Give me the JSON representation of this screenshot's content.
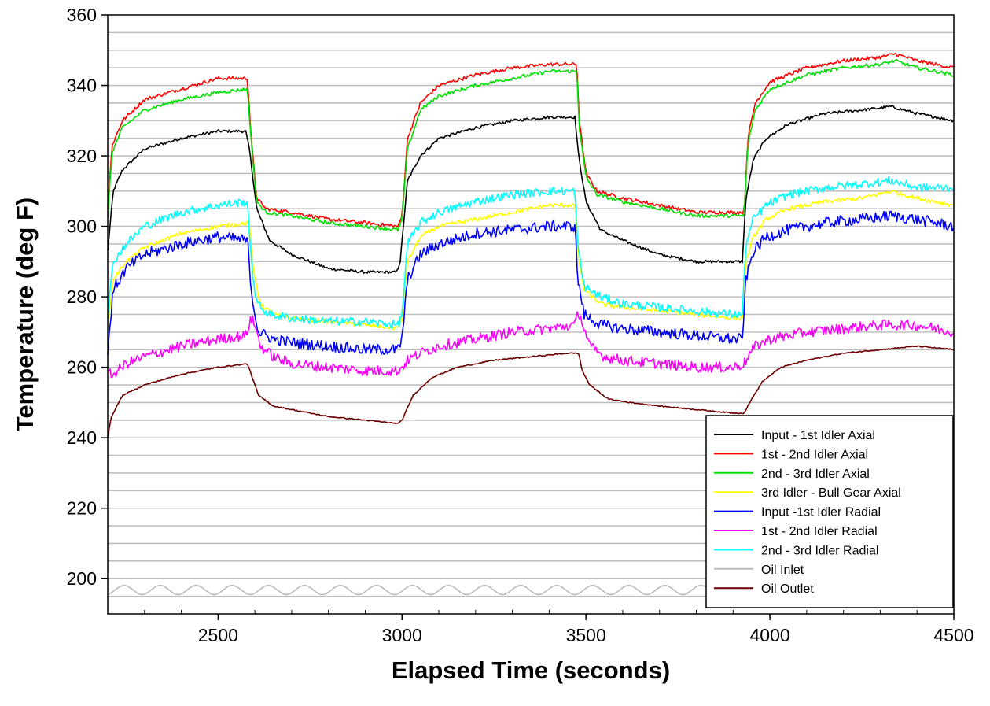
{
  "chart_data": {
    "type": "line",
    "xlabel": "Elapsed Time (seconds)",
    "ylabel": "Temperature (deg F)",
    "xlim": [
      2200,
      4500
    ],
    "ylim": [
      190,
      360
    ],
    "xticks": [
      2500,
      3000,
      3500,
      4000,
      4500
    ],
    "yticks": [
      200,
      220,
      240,
      260,
      280,
      300,
      320,
      340,
      360
    ],
    "grid": "horizontal",
    "legend_position": "bottom-right",
    "series": [
      {
        "name": "Input - 1st Idler Axial",
        "color": "#000000",
        "noise": 0.4,
        "x": [
          2200,
          2215,
          2240,
          2300,
          2400,
          2500,
          2575,
          2585,
          2605,
          2640,
          2700,
          2800,
          2900,
          2985,
          2995,
          3015,
          3050,
          3100,
          3200,
          3300,
          3400,
          3470,
          3480,
          3500,
          3540,
          3600,
          3700,
          3800,
          3900,
          3925,
          3935,
          3955,
          3990,
          4050,
          4150,
          4250,
          4330,
          4400,
          4500
        ],
        "y": [
          293,
          310,
          316,
          322,
          325,
          327,
          327,
          322,
          305,
          296,
          292,
          288,
          287,
          287,
          290,
          313,
          320,
          325,
          328,
          330,
          331,
          331,
          320,
          307,
          299,
          296,
          292,
          290,
          290,
          290,
          308,
          319,
          325,
          329,
          332,
          333,
          334,
          332,
          330
        ]
      },
      {
        "name": "1st - 2nd Idler Axial",
        "color": "#ff0000",
        "noise": 0.5,
        "x": [
          2200,
          2212,
          2240,
          2300,
          2400,
          2500,
          2580,
          2590,
          2605,
          2630,
          2700,
          2800,
          2900,
          2990,
          3000,
          3015,
          3050,
          3100,
          3200,
          3300,
          3400,
          3475,
          3482,
          3500,
          3530,
          3600,
          3700,
          3800,
          3900,
          3930,
          3940,
          3960,
          4000,
          4100,
          4200,
          4300,
          4340,
          4400,
          4500
        ],
        "y": [
          305,
          323,
          330,
          336,
          339,
          342,
          342,
          325,
          308,
          305,
          304,
          302,
          301,
          300,
          303,
          325,
          335,
          340,
          343,
          345,
          346,
          346,
          330,
          315,
          310,
          308,
          306,
          304,
          304,
          304,
          325,
          335,
          341,
          345,
          347,
          348,
          349,
          347,
          345
        ]
      },
      {
        "name": "2nd - 3rd Idler Axial",
        "color": "#00e000",
        "noise": 0.5,
        "x": [
          2200,
          2212,
          2240,
          2300,
          2400,
          2500,
          2580,
          2590,
          2605,
          2630,
          2700,
          2800,
          2900,
          2990,
          3000,
          3015,
          3050,
          3100,
          3200,
          3300,
          3400,
          3475,
          3482,
          3500,
          3530,
          3600,
          3700,
          3800,
          3900,
          3930,
          3940,
          3960,
          4000,
          4100,
          4200,
          4300,
          4340,
          4400,
          4500
        ],
        "y": [
          303,
          321,
          328,
          333,
          336,
          338,
          339,
          324,
          307,
          304,
          303,
          301,
          300,
          299,
          302,
          322,
          333,
          337,
          340,
          342,
          344,
          344,
          328,
          314,
          309,
          307,
          305,
          303,
          303,
          303,
          323,
          333,
          339,
          343,
          345,
          346,
          347,
          345,
          343
        ]
      },
      {
        "name": "3rd Idler - Bull Gear Axial",
        "color": "#ffff00",
        "noise": 0.6,
        "x": [
          2200,
          2215,
          2250,
          2300,
          2400,
          2500,
          2585,
          2595,
          2615,
          2650,
          2700,
          2800,
          2900,
          2990,
          3000,
          3015,
          3050,
          3100,
          3200,
          3300,
          3400,
          3470,
          3478,
          3495,
          3540,
          3600,
          3700,
          3800,
          3900,
          3925,
          3935,
          3955,
          3990,
          4050,
          4150,
          4250,
          4330,
          4400,
          4500
        ],
        "y": [
          272,
          285,
          290,
          294,
          298,
          300,
          301,
          288,
          278,
          275,
          274,
          273,
          272,
          271,
          274,
          290,
          297,
          300,
          302,
          304,
          306,
          306,
          292,
          282,
          278,
          277,
          276,
          275,
          274,
          274,
          290,
          297,
          302,
          305,
          307,
          308,
          310,
          308,
          306
        ]
      },
      {
        "name": "Input -1st Idler Radial",
        "color": "#0000ff",
        "noise": 1.6,
        "x": [
          2200,
          2215,
          2250,
          2300,
          2400,
          2500,
          2580,
          2592,
          2610,
          2650,
          2700,
          2800,
          2900,
          2990,
          3000,
          3015,
          3050,
          3100,
          3200,
          3300,
          3400,
          3470,
          3478,
          3495,
          3540,
          3600,
          3700,
          3800,
          3900,
          3925,
          3935,
          3955,
          3990,
          4050,
          4150,
          4250,
          4330,
          4400,
          4500
        ],
        "y": [
          265,
          282,
          288,
          292,
          295,
          297,
          296,
          280,
          270,
          268,
          267,
          266,
          265,
          265,
          268,
          285,
          292,
          295,
          298,
          299,
          300,
          300,
          285,
          275,
          272,
          271,
          270,
          269,
          268,
          268,
          285,
          293,
          297,
          299,
          301,
          302,
          303,
          302,
          300
        ]
      },
      {
        "name": "1st - 2nd Idler Radial",
        "color": "#ff00ff",
        "noise": 1.5,
        "x": [
          2200,
          2215,
          2250,
          2300,
          2400,
          2500,
          2575,
          2590,
          2600,
          2615,
          2650,
          2700,
          2800,
          2900,
          2990,
          3000,
          3015,
          3050,
          3100,
          3200,
          3300,
          3400,
          3470,
          3480,
          3495,
          3510,
          3550,
          3600,
          3700,
          3800,
          3900,
          3930,
          3940,
          3960,
          4000,
          4100,
          4200,
          4300,
          4400,
          4500
        ],
        "y": [
          258,
          258,
          261,
          263,
          266,
          268,
          269,
          274,
          272,
          266,
          263,
          261,
          260,
          259,
          259,
          260,
          262,
          264,
          266,
          268,
          270,
          271,
          272,
          276,
          271,
          266,
          263,
          262,
          261,
          260,
          260,
          261,
          263,
          266,
          268,
          270,
          271,
          272,
          272,
          270
        ]
      },
      {
        "name": "2nd - 3rd Idler Radial",
        "color": "#00ffff",
        "noise": 1.2,
        "x": [
          2200,
          2215,
          2250,
          2300,
          2400,
          2500,
          2580,
          2590,
          2605,
          2640,
          2700,
          2800,
          2900,
          2990,
          3000,
          3015,
          3050,
          3100,
          3200,
          3300,
          3400,
          3470,
          3478,
          3495,
          3540,
          3600,
          3700,
          3800,
          3900,
          3925,
          3935,
          3955,
          3990,
          4050,
          4150,
          4250,
          4330,
          4400,
          4500
        ],
        "y": [
          275,
          290,
          295,
          300,
          304,
          306,
          307,
          290,
          278,
          275,
          274,
          273,
          273,
          272,
          275,
          295,
          301,
          304,
          307,
          309,
          310,
          310,
          294,
          283,
          280,
          278,
          277,
          276,
          275,
          275,
          295,
          302,
          306,
          309,
          311,
          312,
          313,
          311,
          311
        ]
      },
      {
        "name": "Oil Inlet",
        "color": "#bbbbbb",
        "noise": 0,
        "x": [
          2200,
          4500
        ],
        "y": [
          197,
          197
        ]
      },
      {
        "name": "Oil Outlet",
        "color": "#6b0000",
        "noise": 0.15,
        "x": [
          2200,
          2210,
          2240,
          2300,
          2400,
          2500,
          2580,
          2590,
          2610,
          2650,
          2700,
          2800,
          2900,
          2990,
          3000,
          3030,
          3080,
          3150,
          3250,
          3350,
          3450,
          3480,
          3490,
          3510,
          3560,
          3620,
          3700,
          3800,
          3900,
          3930,
          3945,
          3980,
          4030,
          4100,
          4200,
          4300,
          4400,
          4500
        ],
        "y": [
          240,
          246,
          252,
          255,
          258,
          260,
          261,
          258,
          252,
          249,
          248,
          246,
          245,
          244,
          245,
          252,
          257,
          260,
          262,
          263,
          264,
          264,
          259,
          255,
          251,
          250,
          249,
          248,
          247,
          247,
          250,
          256,
          260,
          262,
          264,
          265,
          266,
          265
        ]
      }
    ]
  }
}
